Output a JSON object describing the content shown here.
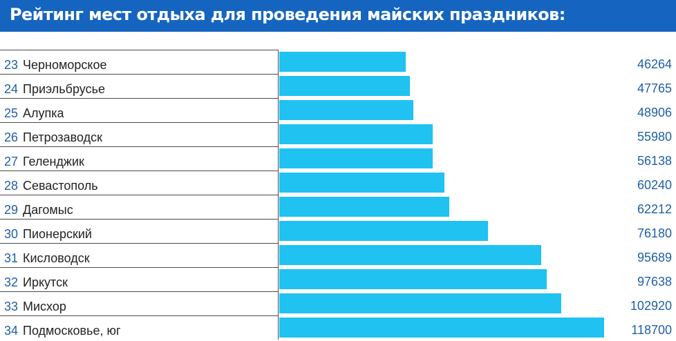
{
  "header": {
    "title": "Рейтинг мест отдыха для проведения майских праздников:"
  },
  "colors": {
    "header_bg": "#1565c0",
    "bar": "#1fc2f0",
    "rank_text": "#1f5fa8",
    "value_text": "#1f5fa8"
  },
  "chart_data": {
    "type": "bar",
    "orientation": "horizontal",
    "title": "Рейтинг мест отдыха для проведения майских праздников:",
    "ranks": [
      "23",
      "24",
      "25",
      "26",
      "27",
      "28",
      "29",
      "30",
      "31",
      "32",
      "33",
      "34"
    ],
    "categories": [
      "Черноморское",
      "Приэльбрусье",
      "Алупка",
      "Петрозаводск",
      "Геленджик",
      "Севастополь",
      "Дагомыс",
      "Пионерский",
      "Кисловодск",
      "Иркутск",
      "Мисхор",
      "Подмосковье, юг"
    ],
    "values": [
      46264,
      47765,
      48906,
      55980,
      56138,
      60240,
      62212,
      76180,
      95689,
      97638,
      102920,
      118700
    ],
    "value_labels": [
      "46264",
      "47765",
      "48906",
      "55980",
      "56138",
      "60240",
      "62212",
      "76180",
      "95689",
      "97638",
      "102920",
      "118700"
    ],
    "xlim": [
      0,
      118700
    ],
    "grid": false,
    "legend": "none"
  }
}
